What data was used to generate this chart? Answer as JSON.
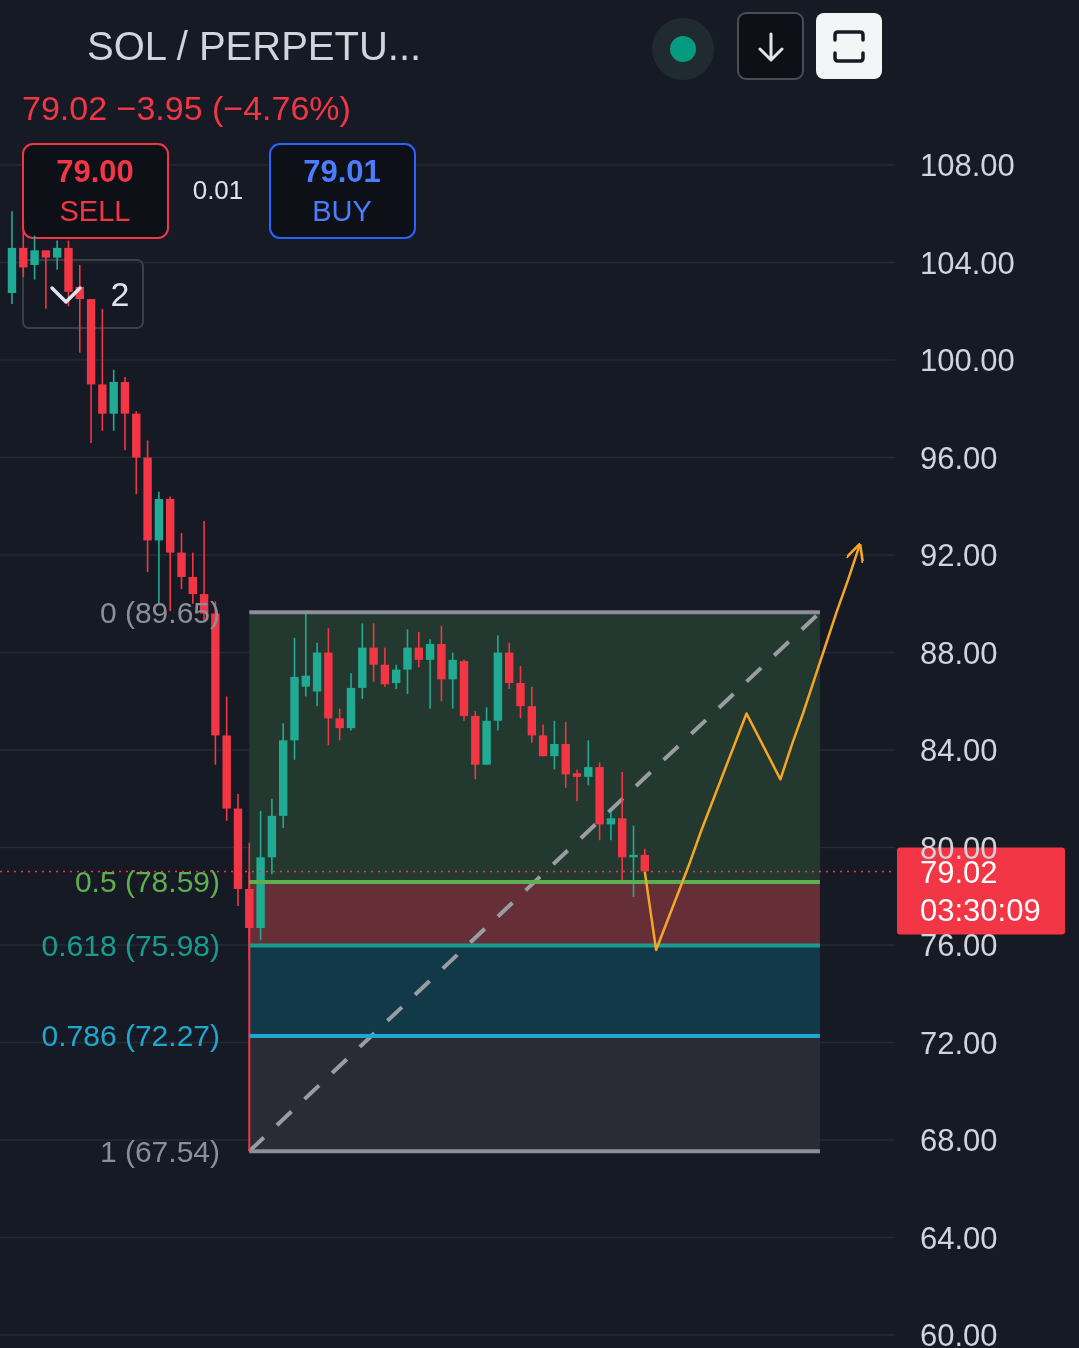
{
  "chart_data": {
    "type": "candlestick",
    "title": "SOL / PERPETU...",
    "subtitle": "79.02  −3.95 (−4.76%)",
    "categories": [
      null,
      null,
      null,
      null,
      null,
      null,
      null,
      null,
      null,
      null,
      null,
      null,
      null,
      null,
      null,
      null,
      null,
      null,
      null,
      null,
      null,
      null,
      null,
      null,
      null,
      null,
      null,
      null,
      null,
      null,
      null,
      null,
      null,
      null,
      null,
      null,
      null,
      null,
      null,
      null,
      null,
      null,
      null,
      null,
      null,
      null,
      null,
      null,
      null,
      null,
      null,
      null,
      null,
      null,
      null,
      null,
      null,
      null,
      null,
      null,
      null,
      null,
      null,
      null,
      null,
      null,
      null,
      null,
      null,
      null,
      null,
      null,
      null,
      null,
      null,
      null,
      null,
      null,
      null
    ],
    "ohlc": [
      [
        102.75,
        106.1,
        102.3,
        104.6
      ],
      [
        104.6,
        105.8,
        103.4,
        103.8
      ],
      [
        103.9,
        105.1,
        103.3,
        104.5
      ],
      [
        104.5,
        104.5,
        102.1,
        104.2
      ],
      [
        104.2,
        104.9,
        103.7,
        104.6
      ],
      [
        104.6,
        104.9,
        102.2,
        102.8
      ],
      [
        103.0,
        103.9,
        100.3,
        102.5
      ],
      [
        102.5,
        102.5,
        96.6,
        99.0
      ],
      [
        99.0,
        102.1,
        97.1,
        97.8
      ],
      [
        97.8,
        99.6,
        97.1,
        99.1
      ],
      [
        99.1,
        99.3,
        96.3,
        97.8
      ],
      [
        97.8,
        97.9,
        94.5,
        96.0
      ],
      [
        96.0,
        96.7,
        91.3,
        92.6
      ],
      [
        92.6,
        94.6,
        90.0,
        94.3
      ],
      [
        94.3,
        94.4,
        89.7,
        92.1
      ],
      [
        92.1,
        92.9,
        90.6,
        91.1
      ],
      [
        91.1,
        92.1,
        90.0,
        90.4
      ],
      [
        90.4,
        93.4,
        89.3,
        89.6
      ],
      [
        89.6,
        90.1,
        83.4,
        84.6
      ],
      [
        84.6,
        86.2,
        81.1,
        81.6
      ],
      [
        81.6,
        82.2,
        77.6,
        78.3
      ],
      [
        78.3,
        80.2,
        75.4,
        76.7
      ],
      [
        76.7,
        81.5,
        76.2,
        79.6
      ],
      [
        79.6,
        82.0,
        78.9,
        81.3
      ],
      [
        81.3,
        85.1,
        80.8,
        84.4
      ],
      [
        84.4,
        88.6,
        83.6,
        87.0
      ],
      [
        86.6,
        89.6,
        86.2,
        87.05
      ],
      [
        86.4,
        88.4,
        85.8,
        88.0
      ],
      [
        88.0,
        89.0,
        84.2,
        85.3
      ],
      [
        85.3,
        85.7,
        84.4,
        84.9
      ],
      [
        84.9,
        87.15,
        84.8,
        86.55
      ],
      [
        86.55,
        89.2,
        86.1,
        88.2
      ],
      [
        88.2,
        89.2,
        86.8,
        87.5
      ],
      [
        87.5,
        88.2,
        86.6,
        86.7
      ],
      [
        86.75,
        87.5,
        86.5,
        87.3
      ],
      [
        87.3,
        88.95,
        86.3,
        88.2
      ],
      [
        88.2,
        88.85,
        87.4,
        87.7
      ],
      [
        87.7,
        88.55,
        85.7,
        88.35
      ],
      [
        88.35,
        89.1,
        86.0,
        86.9
      ],
      [
        86.9,
        88.0,
        85.7,
        87.7
      ],
      [
        87.65,
        87.7,
        85.2,
        85.4
      ],
      [
        85.4,
        85.6,
        82.8,
        83.4
      ],
      [
        83.4,
        85.75,
        83.4,
        85.2
      ],
      [
        85.2,
        88.7,
        84.8,
        88.0
      ],
      [
        88.0,
        88.4,
        86.5,
        86.75
      ],
      [
        86.75,
        87.45,
        85.3,
        85.8
      ],
      [
        85.8,
        86.6,
        84.3,
        84.6
      ],
      [
        84.6,
        85.05,
        83.75,
        83.75
      ],
      [
        83.75,
        85.2,
        83.2,
        84.25
      ],
      [
        84.25,
        85.15,
        82.45,
        83.0
      ],
      [
        83.05,
        83.2,
        81.9,
        82.9
      ],
      [
        82.9,
        84.4,
        82.55,
        83.3
      ],
      [
        83.3,
        83.5,
        80.3,
        80.95
      ],
      [
        80.95,
        81.45,
        80.3,
        81.2
      ],
      [
        81.2,
        83.1,
        78.65,
        79.6
      ],
      [
        79.6,
        80.9,
        77.97,
        79.7
      ],
      [
        79.7,
        79.95,
        79.0,
        79.02
      ],
      null,
      null,
      null,
      null,
      null,
      null,
      null,
      null,
      null,
      null,
      null,
      null,
      null,
      null,
      null,
      null,
      null,
      null,
      null,
      null,
      null,
      null
    ],
    "ylim": [
      59.47,
      114.77
    ],
    "yticks": [
      {
        "value": 60,
        "label": "60.00"
      },
      {
        "value": 64,
        "label": "64.00"
      },
      {
        "value": 68,
        "label": "68.00"
      },
      {
        "value": 72,
        "label": "72.00"
      },
      {
        "value": 76,
        "label": "76.00"
      },
      {
        "value": 80,
        "label": "80.00"
      },
      {
        "value": 84,
        "label": "84.00"
      },
      {
        "value": 88,
        "label": "88.00"
      },
      {
        "value": 92,
        "label": "92.00"
      },
      {
        "value": 96,
        "label": "96.00"
      },
      {
        "value": 100,
        "label": "100.00"
      },
      {
        "value": 104,
        "label": "104.00"
      },
      {
        "value": 108,
        "label": "108.00"
      }
    ],
    "grid": "y",
    "tick_labels": "y",
    "series": [
      {
        "type": "line",
        "color": "#f5a623",
        "values": [
          null,
          null,
          null,
          null,
          null,
          null,
          null,
          null,
          null,
          null,
          null,
          null,
          null,
          null,
          null,
          null,
          null,
          null,
          null,
          null,
          null,
          null,
          null,
          null,
          null,
          null,
          null,
          null,
          null,
          null,
          null,
          null,
          null,
          null,
          null,
          null,
          null,
          null,
          null,
          null,
          null,
          null,
          null,
          null,
          null,
          null,
          null,
          null,
          null,
          null,
          null,
          null,
          null,
          null,
          null,
          null,
          79.0,
          75.8,
          77.0,
          78.2,
          79.4,
          80.7,
          81.9,
          83.1,
          84.3,
          85.5,
          84.6,
          83.7,
          82.8,
          84.2,
          85.5,
          86.9,
          88.3,
          89.7,
          91.0,
          92.4,
          null,
          null,
          null
        ]
      }
    ],
    "ref_lines": [
      {
        "axis": "y",
        "value": 89.65,
        "label": "0 (89.65)",
        "color": "#8c8f98"
      },
      {
        "axis": "y",
        "value": 78.59,
        "label": "0.5 (78.59)",
        "color": "#5fae4f"
      },
      {
        "axis": "y",
        "value": 75.98,
        "label": "0.618 (75.98)",
        "color": "#179c8e"
      },
      {
        "axis": "y",
        "value": 72.27,
        "label": "0.786 (72.27)",
        "color": "#1ea7cf"
      },
      {
        "axis": "y",
        "value": 67.54,
        "label": "1 (67.54)",
        "color": "#8c8f98"
      },
      {
        "axis": "y",
        "value": 79.02,
        "label": "79.02\n03:30:09",
        "color": "#f23645",
        "line_style": "dotted"
      }
    ],
    "bands": [
      {
        "axis": "y",
        "from": 78.59,
        "to": 89.65,
        "color": "#243a2e"
      },
      {
        "axis": "y",
        "from": 75.98,
        "to": 78.59,
        "color": "#6a2f38"
      },
      {
        "axis": "y",
        "from": 72.27,
        "to": 75.98,
        "color": "#113b4a"
      },
      {
        "axis": "y",
        "from": 67.54,
        "to": 72.27,
        "color": "#2a2d35"
      }
    ],
    "annotations": [
      "79.00",
      "SELL",
      "0.01",
      "79.01",
      "BUY",
      "2"
    ]
  }
}
